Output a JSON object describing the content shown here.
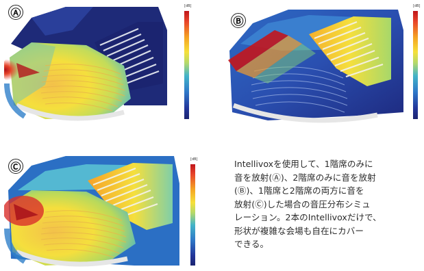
{
  "panels": [
    {
      "label": "Ⓐ",
      "name": "upper-floor-hidden"
    },
    {
      "label": "Ⓑ",
      "name": "lower-floor-hidden"
    },
    {
      "label": "Ⓒ",
      "name": "both-floors"
    }
  ],
  "colorbar": {
    "unit": "[dB]"
  },
  "description": {
    "lines": [
      "Intellivoxを使用して、1階席のみに",
      "音を放射(Ⓐ)、2階席のみに音を放射",
      "(Ⓑ)、1階席と2階席の両方に音を",
      "放射(Ⓒ)した場合の音圧分布シミュ",
      "レーション。2本のIntellivoxだけで、",
      "形状が複雑な会場も自在にカバー",
      "できる。"
    ]
  },
  "colors": {
    "hot": "#c0161b",
    "warm": "#f5a623",
    "yellow": "#f5e03a",
    "cyan": "#43b4c8",
    "blue": "#23369a",
    "navy": "#1c2470"
  }
}
